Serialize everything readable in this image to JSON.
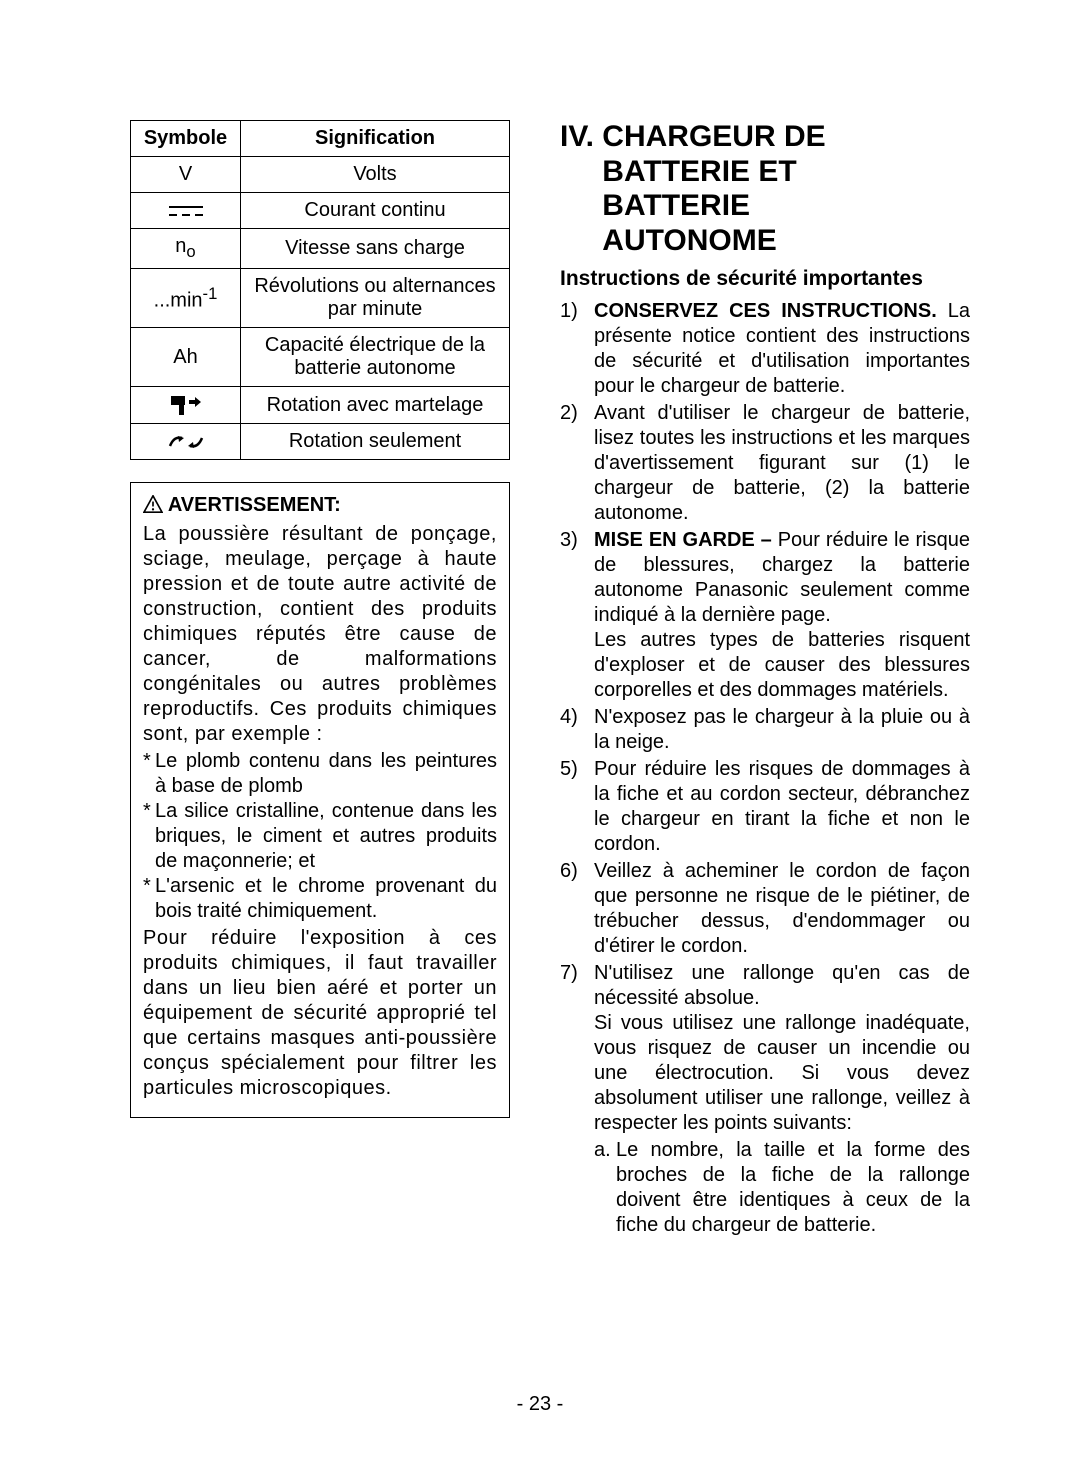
{
  "table": {
    "headers": [
      "Symbole",
      "Signification"
    ],
    "rows": [
      {
        "sym": "V",
        "sig": "Volts",
        "symType": "text"
      },
      {
        "sym": "dc",
        "sig": "Courant continu",
        "symType": "svg"
      },
      {
        "sym": "n",
        "sub": "o",
        "sig": "Vitesse sans charge",
        "symType": "sub"
      },
      {
        "sym": "...min",
        "sup": "-1",
        "sig": "Révolutions ou alternances par minute",
        "symType": "sup"
      },
      {
        "sym": "Ah",
        "sig": "Capacité électrique de la batterie autonome",
        "symType": "text"
      },
      {
        "sym": "hammer",
        "sig": "Rotation avec martelage",
        "symType": "svg"
      },
      {
        "sym": "drill",
        "sig": "Rotation seulement",
        "symType": "svg"
      }
    ]
  },
  "warning": {
    "title": "AVERTISSEMENT:",
    "p1": "La poussière résultant de ponçage, sciage, meulage, perçage à haute pression et de toute autre activité de construction, contient des produits chimiques réputés être cause de cancer, de malformations congénitales ou autres problèmes reproductifs. Ces produits chimiques sont, par exemple :",
    "bullets": [
      "Le plomb contenu dans les peintures à base de plomb",
      "La silice cristalline, contenue dans les briques, le ciment et autres produits de maçonnerie; et",
      "L'arsenic et le chrome provenant du bois traité chimiquement."
    ],
    "p2": "Pour réduire l'exposition à ces produits chimiques, il faut travailler dans un lieu bien aéré et porter un équipement de sécurité approprié tel que certains masques anti-poussière conçus spécialement pour filtrer les particules microscopiques."
  },
  "right": {
    "heading_roman": "IV.",
    "heading_text": "CHARGEUR DE BATTERIE ET BATTERIE AUTONOME",
    "subhead": "Instructions de sécurité importantes",
    "items": [
      {
        "num": "1)",
        "lead_bold": "CONSERVEZ CES INSTRUCTIONS.",
        "rest": "La présente notice contient des instructions de sécurité et d'utilisation importantes pour le chargeur de batterie."
      },
      {
        "num": "2)",
        "rest": "Avant d'utiliser le chargeur de batterie, lisez toutes les instructions et les marques d'avertissement figurant sur (1) le chargeur de batterie, (2) la batterie autonome."
      },
      {
        "num": "3)",
        "lead_bold": "MISE EN GARDE –",
        "rest": "Pour réduire le risque de blessures, chargez la batterie autonome Panasonic seulement comme indiqué à la dernière page.",
        "extra": "Les autres types de batteries risquent d'exploser et de causer des blessures corporelles et des dommages matériels."
      },
      {
        "num": "4)",
        "rest": "N'exposez pas le chargeur à la pluie ou à la neige."
      },
      {
        "num": "5)",
        "rest": "Pour réduire les risques de dommages à la fiche et au cordon secteur, débranchez le chargeur en tirant la fiche et non le cordon."
      },
      {
        "num": "6)",
        "rest": "Veillez à acheminer le cordon de façon que personne ne risque de le piétiner, de trébucher dessus, d'endommager ou d'étirer le cordon."
      },
      {
        "num": "7)",
        "rest": "N'utilisez une rallonge qu'en cas de nécessité absolue.",
        "extra": "Si vous utilisez une rallonge inadéquate, vous risquez de causer un incendie ou une électrocution. Si vous devez absolument utiliser une rallonge, veillez à respecter les points suivants:",
        "sub": {
          "n": "a.",
          "t": "Le nombre, la taille et la forme des broches de la fiche de la rallonge doivent être identiques à ceux de la fiche du chargeur de batterie."
        }
      }
    ]
  },
  "page_number": "- 23 -",
  "colors": {
    "text": "#000000",
    "bg": "#ffffff",
    "border": "#000000"
  }
}
